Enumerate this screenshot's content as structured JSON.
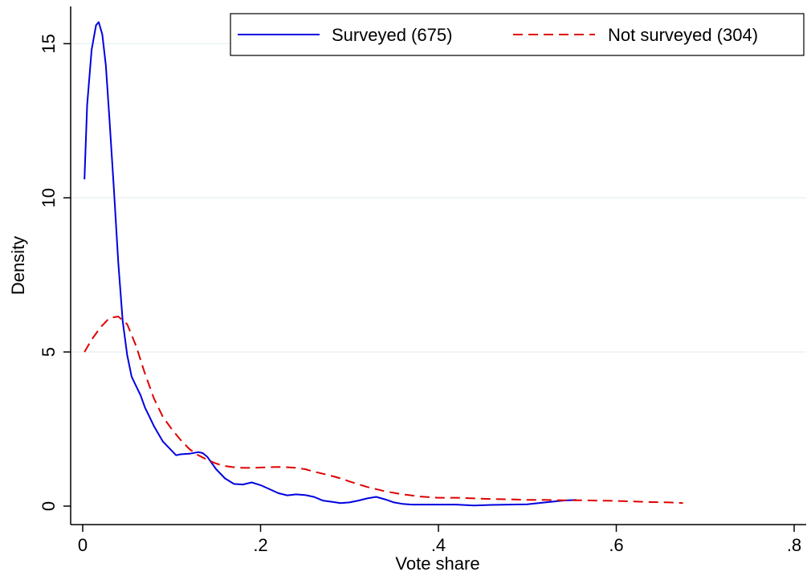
{
  "chart_data": {
    "type": "line",
    "xlabel": "Vote share",
    "ylabel": "Density",
    "xlim": [
      0,
      0.8
    ],
    "ylim": [
      0,
      16
    ],
    "x_ticks": [
      0,
      0.2,
      0.4,
      0.6,
      0.8
    ],
    "x_tick_labels": [
      "0",
      ".2",
      ".4",
      ".6",
      ".8"
    ],
    "y_ticks": [
      0,
      5,
      10,
      15
    ],
    "y_tick_labels": [
      "0",
      "5",
      "10",
      "15"
    ],
    "grid": "horizontal",
    "legend_position": "top",
    "series": [
      {
        "name": "Surveyed (675)",
        "color": "#0000e0",
        "dash": "solid",
        "x": [
          0.002,
          0.005,
          0.01,
          0.015,
          0.018,
          0.022,
          0.026,
          0.03,
          0.035,
          0.04,
          0.045,
          0.05,
          0.055,
          0.06,
          0.065,
          0.07,
          0.075,
          0.08,
          0.09,
          0.1,
          0.105,
          0.11,
          0.12,
          0.13,
          0.135,
          0.14,
          0.15,
          0.16,
          0.17,
          0.18,
          0.19,
          0.2,
          0.21,
          0.22,
          0.23,
          0.24,
          0.25,
          0.26,
          0.27,
          0.28,
          0.29,
          0.3,
          0.31,
          0.32,
          0.33,
          0.34,
          0.35,
          0.36,
          0.37,
          0.38,
          0.4,
          0.42,
          0.44,
          0.46,
          0.48,
          0.5,
          0.52,
          0.54,
          0.555
        ],
        "y": [
          10.6,
          13.0,
          14.8,
          15.6,
          15.7,
          15.3,
          14.3,
          12.6,
          10.3,
          7.9,
          6.0,
          4.9,
          4.2,
          3.9,
          3.6,
          3.2,
          2.9,
          2.6,
          2.1,
          1.8,
          1.65,
          1.68,
          1.7,
          1.75,
          1.72,
          1.6,
          1.2,
          0.9,
          0.72,
          0.7,
          0.77,
          0.68,
          0.55,
          0.42,
          0.35,
          0.38,
          0.36,
          0.3,
          0.18,
          0.14,
          0.1,
          0.12,
          0.18,
          0.25,
          0.3,
          0.22,
          0.12,
          0.07,
          0.05,
          0.05,
          0.05,
          0.05,
          0.02,
          0.04,
          0.05,
          0.06,
          0.12,
          0.18,
          0.2
        ]
      },
      {
        "name": "Not surveyed (304)",
        "color": "#e00000",
        "dash": "dashed",
        "x": [
          0.002,
          0.01,
          0.02,
          0.03,
          0.04,
          0.05,
          0.06,
          0.07,
          0.08,
          0.09,
          0.1,
          0.11,
          0.12,
          0.13,
          0.14,
          0.15,
          0.16,
          0.17,
          0.18,
          0.19,
          0.2,
          0.21,
          0.22,
          0.23,
          0.24,
          0.25,
          0.26,
          0.27,
          0.28,
          0.29,
          0.3,
          0.32,
          0.34,
          0.36,
          0.38,
          0.4,
          0.42,
          0.44,
          0.46,
          0.48,
          0.5,
          0.52,
          0.54,
          0.56,
          0.58,
          0.6,
          0.62,
          0.64,
          0.66,
          0.675
        ],
        "y": [
          5.0,
          5.4,
          5.8,
          6.1,
          6.15,
          5.9,
          5.2,
          4.3,
          3.5,
          2.9,
          2.5,
          2.15,
          1.85,
          1.65,
          1.5,
          1.38,
          1.3,
          1.26,
          1.24,
          1.24,
          1.25,
          1.26,
          1.27,
          1.26,
          1.24,
          1.2,
          1.12,
          1.05,
          0.98,
          0.9,
          0.8,
          0.62,
          0.48,
          0.38,
          0.31,
          0.27,
          0.27,
          0.25,
          0.23,
          0.22,
          0.2,
          0.2,
          0.19,
          0.19,
          0.18,
          0.17,
          0.15,
          0.13,
          0.12,
          0.1
        ]
      }
    ]
  }
}
